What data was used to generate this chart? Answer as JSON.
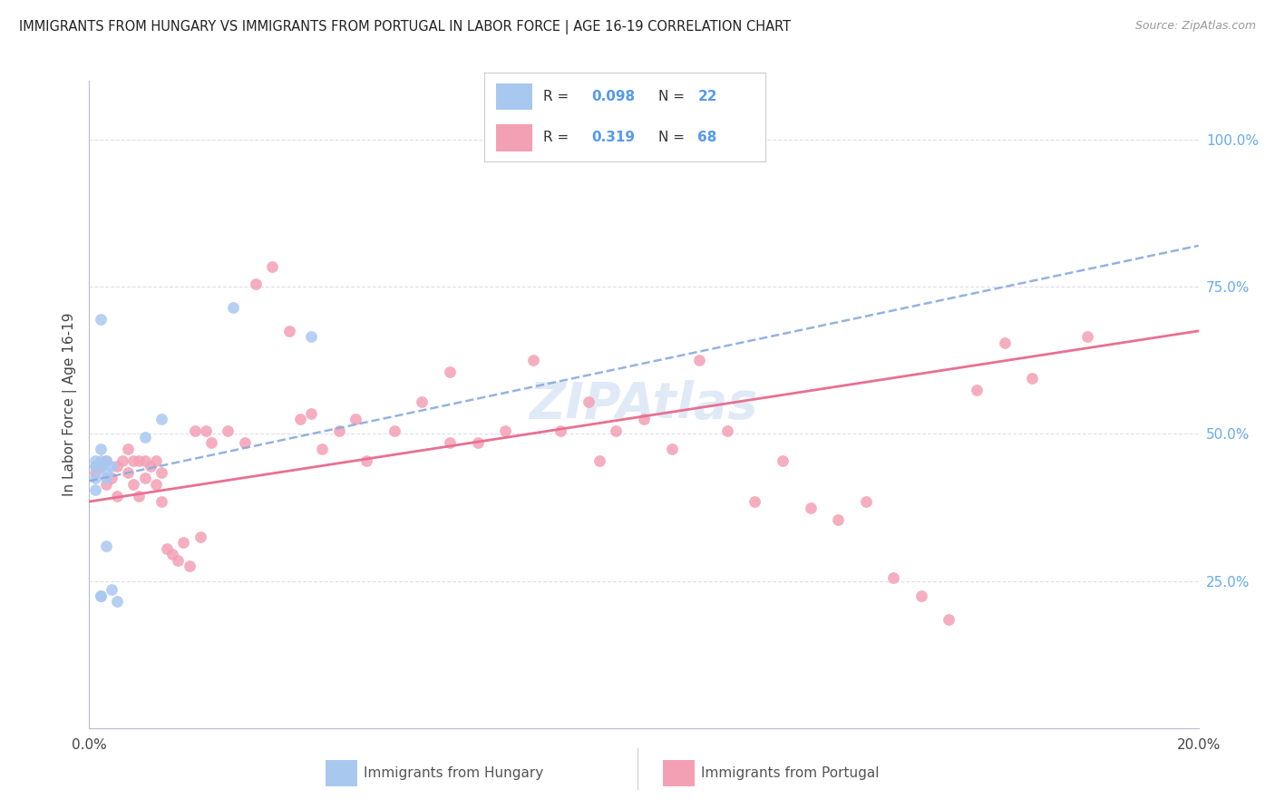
{
  "title": "IMMIGRANTS FROM HUNGARY VS IMMIGRANTS FROM PORTUGAL IN LABOR FORCE | AGE 16-19 CORRELATION CHART",
  "source": "Source: ZipAtlas.com",
  "ylabel": "In Labor Force | Age 16-19",
  "xlim": [
    0.0,
    0.2
  ],
  "ylim": [
    0.0,
    1.1
  ],
  "hungary_color": "#a8c8f0",
  "portugal_color": "#f4a0b4",
  "hungary_trend_color": "#8aaadd",
  "portugal_trend_color": "#e87090",
  "grid_color": "#ddddee",
  "right_tick_color": "#66aaee",
  "hungary_N": 22,
  "portugal_N": 68,
  "hungary_R": 0.098,
  "portugal_R": 0.319,
  "hun_x": [
    0.001,
    0.002,
    0.002,
    0.003,
    0.003,
    0.004,
    0.001,
    0.002,
    0.001,
    0.002,
    0.003,
    0.001,
    0.002,
    0.004,
    0.005,
    0.001,
    0.002,
    0.003,
    0.01,
    0.013,
    0.026,
    0.04
  ],
  "hun_y": [
    0.445,
    0.695,
    0.445,
    0.455,
    0.425,
    0.445,
    0.425,
    0.475,
    0.405,
    0.455,
    0.435,
    0.455,
    0.225,
    0.235,
    0.215,
    0.445,
    0.225,
    0.31,
    0.495,
    0.525,
    0.715,
    0.665
  ],
  "port_x": [
    0.001,
    0.002,
    0.003,
    0.003,
    0.004,
    0.005,
    0.005,
    0.006,
    0.007,
    0.007,
    0.008,
    0.008,
    0.009,
    0.009,
    0.01,
    0.01,
    0.011,
    0.012,
    0.012,
    0.013,
    0.013,
    0.014,
    0.015,
    0.016,
    0.017,
    0.018,
    0.019,
    0.02,
    0.021,
    0.022,
    0.025,
    0.028,
    0.03,
    0.033,
    0.036,
    0.038,
    0.04,
    0.042,
    0.045,
    0.048,
    0.05,
    0.055,
    0.06,
    0.065,
    0.065,
    0.07,
    0.075,
    0.08,
    0.085,
    0.09,
    0.092,
    0.095,
    0.1,
    0.105,
    0.11,
    0.115,
    0.12,
    0.125,
    0.13,
    0.135,
    0.14,
    0.145,
    0.15,
    0.155,
    0.16,
    0.165,
    0.17,
    0.18
  ],
  "port_y": [
    0.435,
    0.445,
    0.415,
    0.455,
    0.425,
    0.445,
    0.395,
    0.455,
    0.435,
    0.475,
    0.415,
    0.455,
    0.395,
    0.455,
    0.425,
    0.455,
    0.445,
    0.415,
    0.455,
    0.385,
    0.435,
    0.305,
    0.295,
    0.285,
    0.315,
    0.275,
    0.505,
    0.325,
    0.505,
    0.485,
    0.505,
    0.485,
    0.755,
    0.785,
    0.675,
    0.525,
    0.535,
    0.475,
    0.505,
    0.525,
    0.455,
    0.505,
    0.555,
    0.485,
    0.605,
    0.485,
    0.505,
    0.625,
    0.505,
    0.555,
    0.455,
    0.505,
    0.525,
    0.475,
    0.625,
    0.505,
    0.385,
    0.455,
    0.375,
    0.355,
    0.385,
    0.255,
    0.225,
    0.185,
    0.575,
    0.655,
    0.595,
    0.665
  ]
}
